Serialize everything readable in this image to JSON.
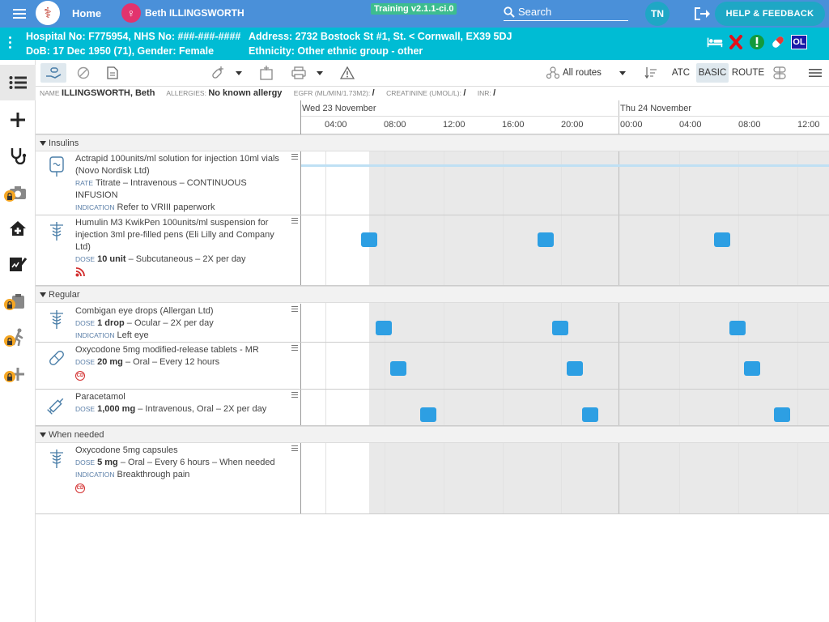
{
  "header": {
    "home_label": "Home",
    "patient_name": "Beth ILLINGSWORTH",
    "training_label": "Training v2.1.1-ci.0",
    "search_label": "Search",
    "user_initials": "TN",
    "help_label": "HELP & FEEDBACK"
  },
  "patient": {
    "line1_left": "Hospital No: F775954, NHS No: ###-###-####",
    "line2_left": "DoB: 17 Dec 1950 (71), Gender: Female",
    "line1_right": "Address: 2732 Bostock St #1, St. < Cornwall, EX39 5DJ",
    "line2_right": "Ethnicity: Other ethnic group - other",
    "ol_label": "OL"
  },
  "toolbar": {
    "routes_label": "All routes",
    "atc_label": "ATC",
    "basic_label": "BASIC",
    "route_label": "ROUTE"
  },
  "info": {
    "name_label": "NAME",
    "name_value": "ILLINGSWORTH, Beth",
    "allergies_label": "ALLERGIES:",
    "allergies_value": "No known allergy",
    "egfr_label": "EGFR (ML/MIN/1.73M2):",
    "egfr_value": "/",
    "creat_label": "CREATININE (UMOL/L):",
    "creat_value": "/",
    "inr_label": "INR:",
    "inr_value": "/"
  },
  "timeline": {
    "day1": "Wed 23 November",
    "day2": "Thu 24 November",
    "ticks": [
      "04:00",
      "08:00",
      "12:00",
      "16:00",
      "20:00",
      "00:00",
      "04:00",
      "08:00",
      "12:00"
    ]
  },
  "sections": {
    "insulins": "Insulins",
    "regular": "Regular",
    "when_needed": "When needed"
  },
  "drugs": {
    "actrapid": {
      "name": "Actrapid 100units/ml solution for injection 10ml vials (Novo Nordisk Ltd)",
      "rate_label": "RATE",
      "rate_value": "Titrate – Intravenous – CONTINUOUS INFUSION",
      "ind_label": "INDICATION",
      "ind_value": "Refer to VRIII paperwork"
    },
    "humulin": {
      "name": "Humulin M3 KwikPen 100units/ml suspension for injection 3ml pre-filled pens (Eli Lilly and Company Ltd)",
      "dose_label": "DOSE",
      "dose_bold": "10 unit",
      "dose_rest": "– Subcutaneous – 2X per day"
    },
    "combigan": {
      "name": "Combigan eye drops (Allergan Ltd)",
      "dose_label": "DOSE",
      "dose_bold": "1 drop",
      "dose_rest": "– Ocular – 2X per day",
      "ind_label": "INDICATION",
      "ind_value": "Left eye"
    },
    "oxy_mr": {
      "name": "Oxycodone 5mg modified-release tablets - MR",
      "dose_label": "DOSE",
      "dose_bold": "20 mg",
      "dose_rest": "– Oral – Every 12 hours",
      "cd_label": "CD"
    },
    "paracetamol": {
      "name": "Paracetamol",
      "dose_label": "DOSE",
      "dose_bold": "1,000 mg",
      "dose_rest": "– Intravenous, Oral – 2X per day"
    },
    "oxy_caps": {
      "name": "Oxycodone 5mg capsules",
      "dose_label": "DOSE",
      "dose_bold": "5 mg",
      "dose_rest": "– Oral – Every 6 hours – When needed",
      "ind_label": "INDICATION",
      "ind_value": "Breakthrough pain",
      "cd_label": "CD"
    }
  },
  "colors": {
    "topbar": "#4a90d9",
    "patient_banner": "#00bcd4",
    "dose_marker": "#2d9fe3",
    "infusion_line": "#bfe0f4"
  }
}
